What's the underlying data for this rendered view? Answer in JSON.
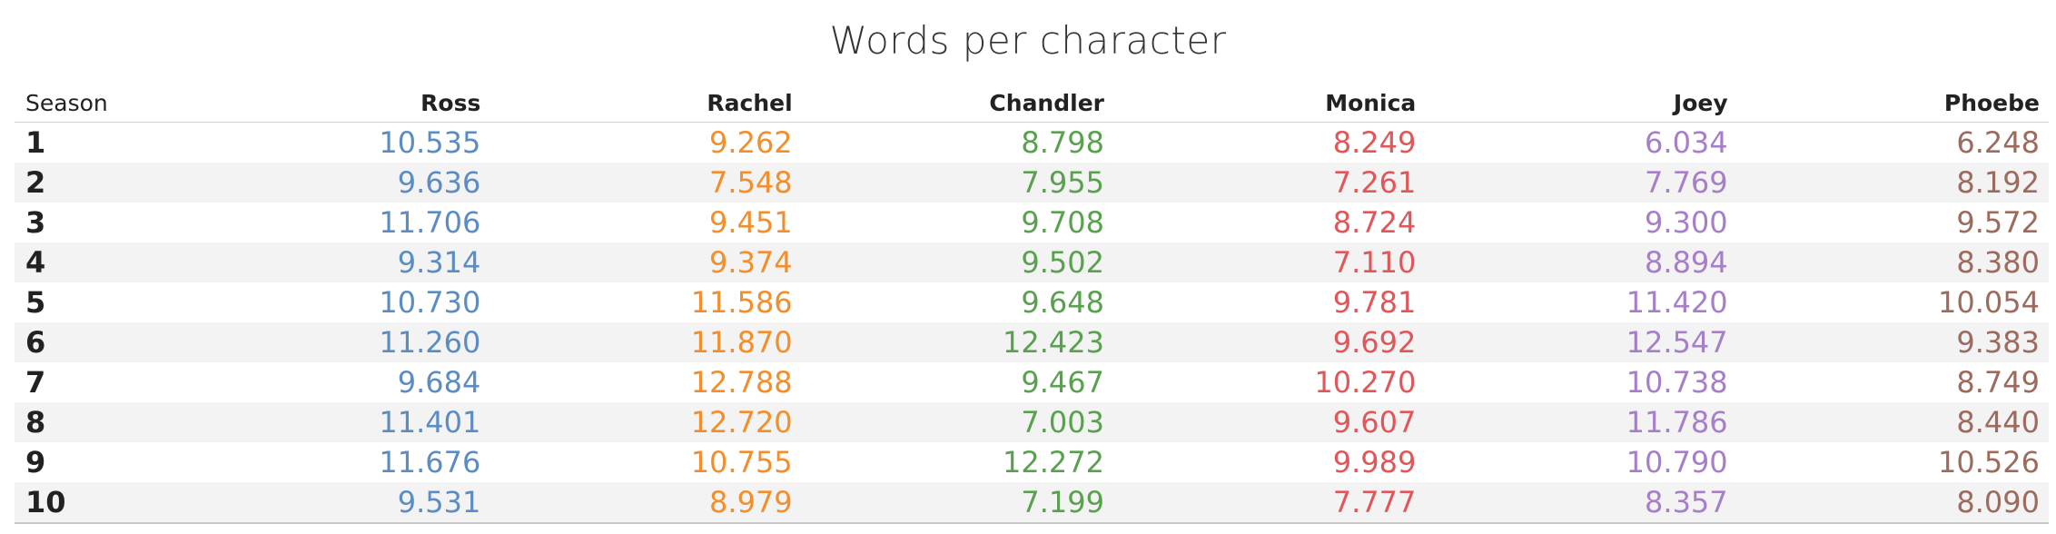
{
  "chart_data": {
    "type": "table",
    "title": "Words per character",
    "row_header": "Season",
    "columns": [
      "Ross",
      "Rachel",
      "Chandler",
      "Monica",
      "Joey",
      "Phoebe"
    ],
    "colors": {
      "Ross": "#5b8dc4",
      "Rachel": "#f28e2b",
      "Chandler": "#59a14f",
      "Monica": "#e15759",
      "Joey": "#a67fc9",
      "Phoebe": "#9c6b5e"
    },
    "rows": [
      {
        "season": "1",
        "values": [
          "10.535",
          "9.262",
          "8.798",
          "8.249",
          "6.034",
          "6.248"
        ]
      },
      {
        "season": "2",
        "values": [
          "9.636",
          "7.548",
          "7.955",
          "7.261",
          "7.769",
          "8.192"
        ]
      },
      {
        "season": "3",
        "values": [
          "11.706",
          "9.451",
          "9.708",
          "8.724",
          "9.300",
          "9.572"
        ]
      },
      {
        "season": "4",
        "values": [
          "9.314",
          "9.374",
          "9.502",
          "7.110",
          "8.894",
          "8.380"
        ]
      },
      {
        "season": "5",
        "values": [
          "10.730",
          "11.586",
          "9.648",
          "9.781",
          "11.420",
          "10.054"
        ]
      },
      {
        "season": "6",
        "values": [
          "11.260",
          "11.870",
          "12.423",
          "9.692",
          "12.547",
          "9.383"
        ]
      },
      {
        "season": "7",
        "values": [
          "9.684",
          "12.788",
          "9.467",
          "10.270",
          "10.738",
          "8.749"
        ]
      },
      {
        "season": "8",
        "values": [
          "11.401",
          "12.720",
          "7.003",
          "9.607",
          "11.786",
          "8.440"
        ]
      },
      {
        "season": "9",
        "values": [
          "11.676",
          "10.755",
          "12.272",
          "9.989",
          "10.790",
          "10.526"
        ]
      },
      {
        "season": "10",
        "values": [
          "9.531",
          "8.979",
          "7.199",
          "7.777",
          "8.357",
          "8.090"
        ]
      }
    ]
  }
}
